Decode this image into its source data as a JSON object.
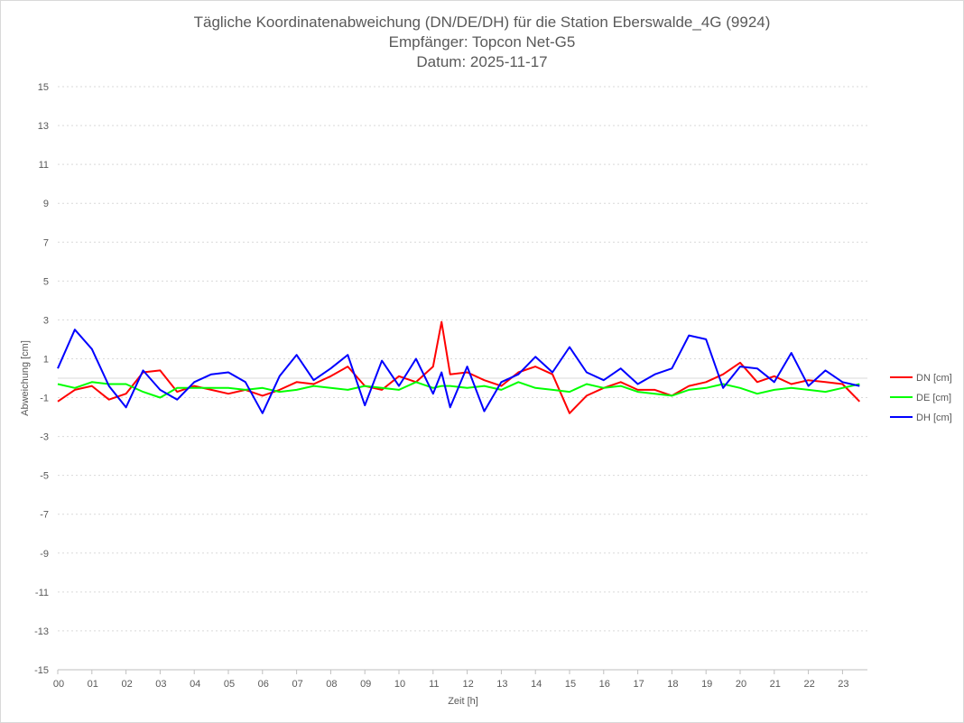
{
  "chart_data": {
    "type": "line",
    "title": "Tägliche Koordinatenabweichung (DN/DE/DH) für die Station Eberswalde_4G (9924)",
    "subtitle": "Empfänger: Topcon Net-G5",
    "date_line": "Datum: 2025-11-17",
    "xlabel": "Zeit [h]",
    "ylabel": "Abweichung [cm]",
    "xlim": [
      0,
      23.5
    ],
    "ylim": [
      -15,
      15
    ],
    "x_ticks": [
      "00",
      "01",
      "02",
      "03",
      "04",
      "05",
      "06",
      "07",
      "08",
      "09",
      "10",
      "11",
      "12",
      "13",
      "14",
      "15",
      "16",
      "17",
      "18",
      "19",
      "20",
      "21",
      "22",
      "23"
    ],
    "y_ticks": [
      "15",
      "13",
      "11",
      "9",
      "7",
      "5",
      "3",
      "1",
      "-1",
      "-3",
      "-5",
      "-7",
      "-9",
      "-11",
      "-13",
      "-15"
    ],
    "legend_position": "right",
    "x": [
      0,
      0.5,
      1,
      1.5,
      2,
      2.5,
      3,
      3.5,
      4,
      4.5,
      5,
      5.5,
      6,
      6.5,
      7,
      7.5,
      8,
      8.5,
      9,
      9.5,
      10,
      10.5,
      11,
      11.25,
      11.5,
      12,
      12.5,
      13,
      13.5,
      14,
      14.5,
      15,
      15.5,
      16,
      16.5,
      17,
      17.5,
      18,
      18.5,
      19,
      19.5,
      20,
      20.5,
      21,
      21.5,
      22,
      22.5,
      23,
      23.5
    ],
    "series": [
      {
        "name": "DN [cm]",
        "color": "#ff0000",
        "values": [
          -1.2,
          -0.6,
          -0.4,
          -1.1,
          -0.8,
          0.3,
          0.4,
          -0.7,
          -0.4,
          -0.6,
          -0.8,
          -0.6,
          -0.9,
          -0.6,
          -0.2,
          -0.3,
          0.1,
          0.6,
          -0.4,
          -0.6,
          0.1,
          -0.2,
          0.6,
          2.9,
          0.2,
          0.3,
          -0.1,
          -0.4,
          0.3,
          0.6,
          0.2,
          -1.8,
          -0.9,
          -0.5,
          -0.2,
          -0.6,
          -0.6,
          -0.9,
          -0.4,
          -0.2,
          0.2,
          0.8,
          -0.2,
          0.1,
          -0.3,
          -0.1,
          -0.2,
          -0.3,
          -1.2
        ]
      },
      {
        "name": "DE [cm]",
        "color": "#00ff00",
        "values": [
          -0.3,
          -0.5,
          -0.2,
          -0.3,
          -0.3,
          -0.7,
          -1.0,
          -0.5,
          -0.5,
          -0.5,
          -0.5,
          -0.6,
          -0.5,
          -0.7,
          -0.6,
          -0.4,
          -0.5,
          -0.6,
          -0.4,
          -0.5,
          -0.6,
          -0.2,
          -0.5,
          -0.4,
          -0.4,
          -0.5,
          -0.4,
          -0.6,
          -0.2,
          -0.5,
          -0.6,
          -0.7,
          -0.3,
          -0.5,
          -0.4,
          -0.7,
          -0.8,
          -0.9,
          -0.6,
          -0.5,
          -0.3,
          -0.5,
          -0.8,
          -0.6,
          -0.5,
          -0.6,
          -0.7,
          -0.5,
          -0.3
        ]
      },
      {
        "name": "DH [cm]",
        "color": "#0000ff",
        "values": [
          0.5,
          2.5,
          1.5,
          -0.4,
          -1.5,
          0.4,
          -0.6,
          -1.1,
          -0.2,
          0.2,
          0.3,
          -0.2,
          -1.8,
          0.1,
          1.2,
          -0.1,
          0.5,
          1.2,
          -1.4,
          0.9,
          -0.4,
          1.0,
          -0.8,
          0.3,
          -1.5,
          0.6,
          -1.7,
          -0.2,
          0.2,
          1.1,
          0.3,
          1.6,
          0.3,
          -0.1,
          0.5,
          -0.3,
          0.2,
          0.5,
          2.2,
          2.0,
          -0.5,
          0.6,
          0.5,
          -0.2,
          1.3,
          -0.4,
          0.4,
          -0.2,
          -0.4
        ]
      }
    ]
  }
}
